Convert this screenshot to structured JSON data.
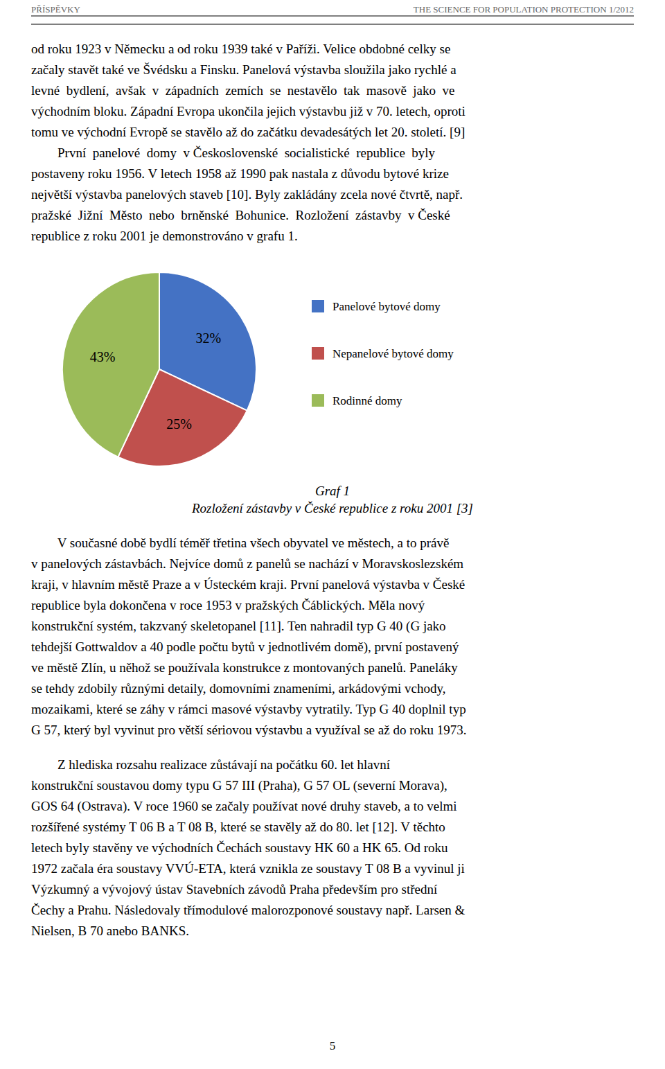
{
  "page": {
    "header_left": "PŘÍSPĚVKY",
    "header_right": "THE SCIENCE FOR POPULATION PROTECTION 1/2012",
    "paragraphs": [
      [
        "od roku 1923 v Německu a od roku 1939 také v Paříži. Velice obdobné celky se",
        "začaly stavět také ve Švédsku a Finsku. Panelová výstavba sloužila jako rychlé a",
        "levné  bydlení,  avšak  v  západních  zemích  se  nestavělo  tak  masově  jako  ve",
        "východním bloku. Západní Evropa ukončila jejich výstavbu již v 70. letech, oproti",
        "tomu ve východní Evropě se stavělo až do začátku devadesátých let 20. století. [9]",
        "        První  panelové  domy  v Československé  socialistické  republice  byly",
        "postaveny roku 1956. V letech 1958 až 1990 pak nastala z důvodu bytové krize",
        "největší výstavba panelových staveb [10]. Byly zakládány zcela nové čtvrtě, např.",
        "pražské  Jižní  Město  nebo  brněnské  Bohunice.  Rozložení  zástavby  v České",
        "republice z roku 2001 je demonstrováno v grafu 1."
      ],
      [
        "        V současné době bydlí téměř třetina všech obyvatel ve městech, a to právě",
        "v panelových zástavbách. Nejvíce domů z panelů se nachází v Moravskoslezském",
        "kraji, v hlavním městě Praze a v Ústeckém kraji. První panelová výstavba v České",
        "republice byla dokončena v roce 1953 v pražských Čáblických. Měla nový",
        "konstrukční systém, takzvaný skeletopanel [11]. Ten nahradil typ G 40 (G jako",
        "tehdejší Gottwaldov a 40 podle počtu bytů v jednotlivém domě), první postavený",
        "ve městě Zlín, u něhož se používala konstrukce z montovaných panelů. Paneláky",
        "se tehdy zdobily různými detaily, domovními znameními, arkádovými vchody,",
        "mozaikami, které se záhy v rámci masové výstavby vytratily. Typ G 40 doplnil typ",
        "G 57, který byl vyvinut pro větší sériovou výstavbu a využíval se až do roku 1973."
      ],
      [
        "        Z hlediska rozsahu realizace zůstávají na počátku 60. let hlavní",
        "konstrukční soustavou domy typu G 57 III (Praha), G 57 OL (severní Morava),",
        "GOS 64 (Ostrava). V roce 1960 se začaly používat nové druhy staveb, a to velmi",
        "rozšířené systémy T 06 B a T 08 B, které se stavěly až do 80. let [12]. V těchto",
        "letech byly stavěny ve východních Čechách soustavy HK 60 a HK 65. Od roku",
        "1972 začala éra soustavy VVÚ-ETA, která vznikla ze soustavy T 08 B a vyvinul ji",
        "Výzkumný a vývojový ústav Stavebních závodů Praha především pro střední",
        "Čechy a Prahu. Následovaly třímodulové malorozponové soustavy např. Larsen &",
        "Nielsen, B 70 anebo BANKS."
      ]
    ],
    "page_number": "5"
  },
  "chart_data": {
    "type": "pie",
    "title": "Graf 1",
    "subtitle": "Rozložení zástavby v České republice z roku 2001 [3]",
    "categories": [
      "Panelové bytové domy",
      "Nepanelové bytové domy",
      "Rodinné domy"
    ],
    "values": [
      32,
      25,
      43
    ],
    "value_labels": [
      "32%",
      "25%",
      "43%"
    ],
    "colors": [
      "#4472C4",
      "#C0504D",
      "#9BBB59"
    ],
    "data_labels": true,
    "legend": "right"
  }
}
